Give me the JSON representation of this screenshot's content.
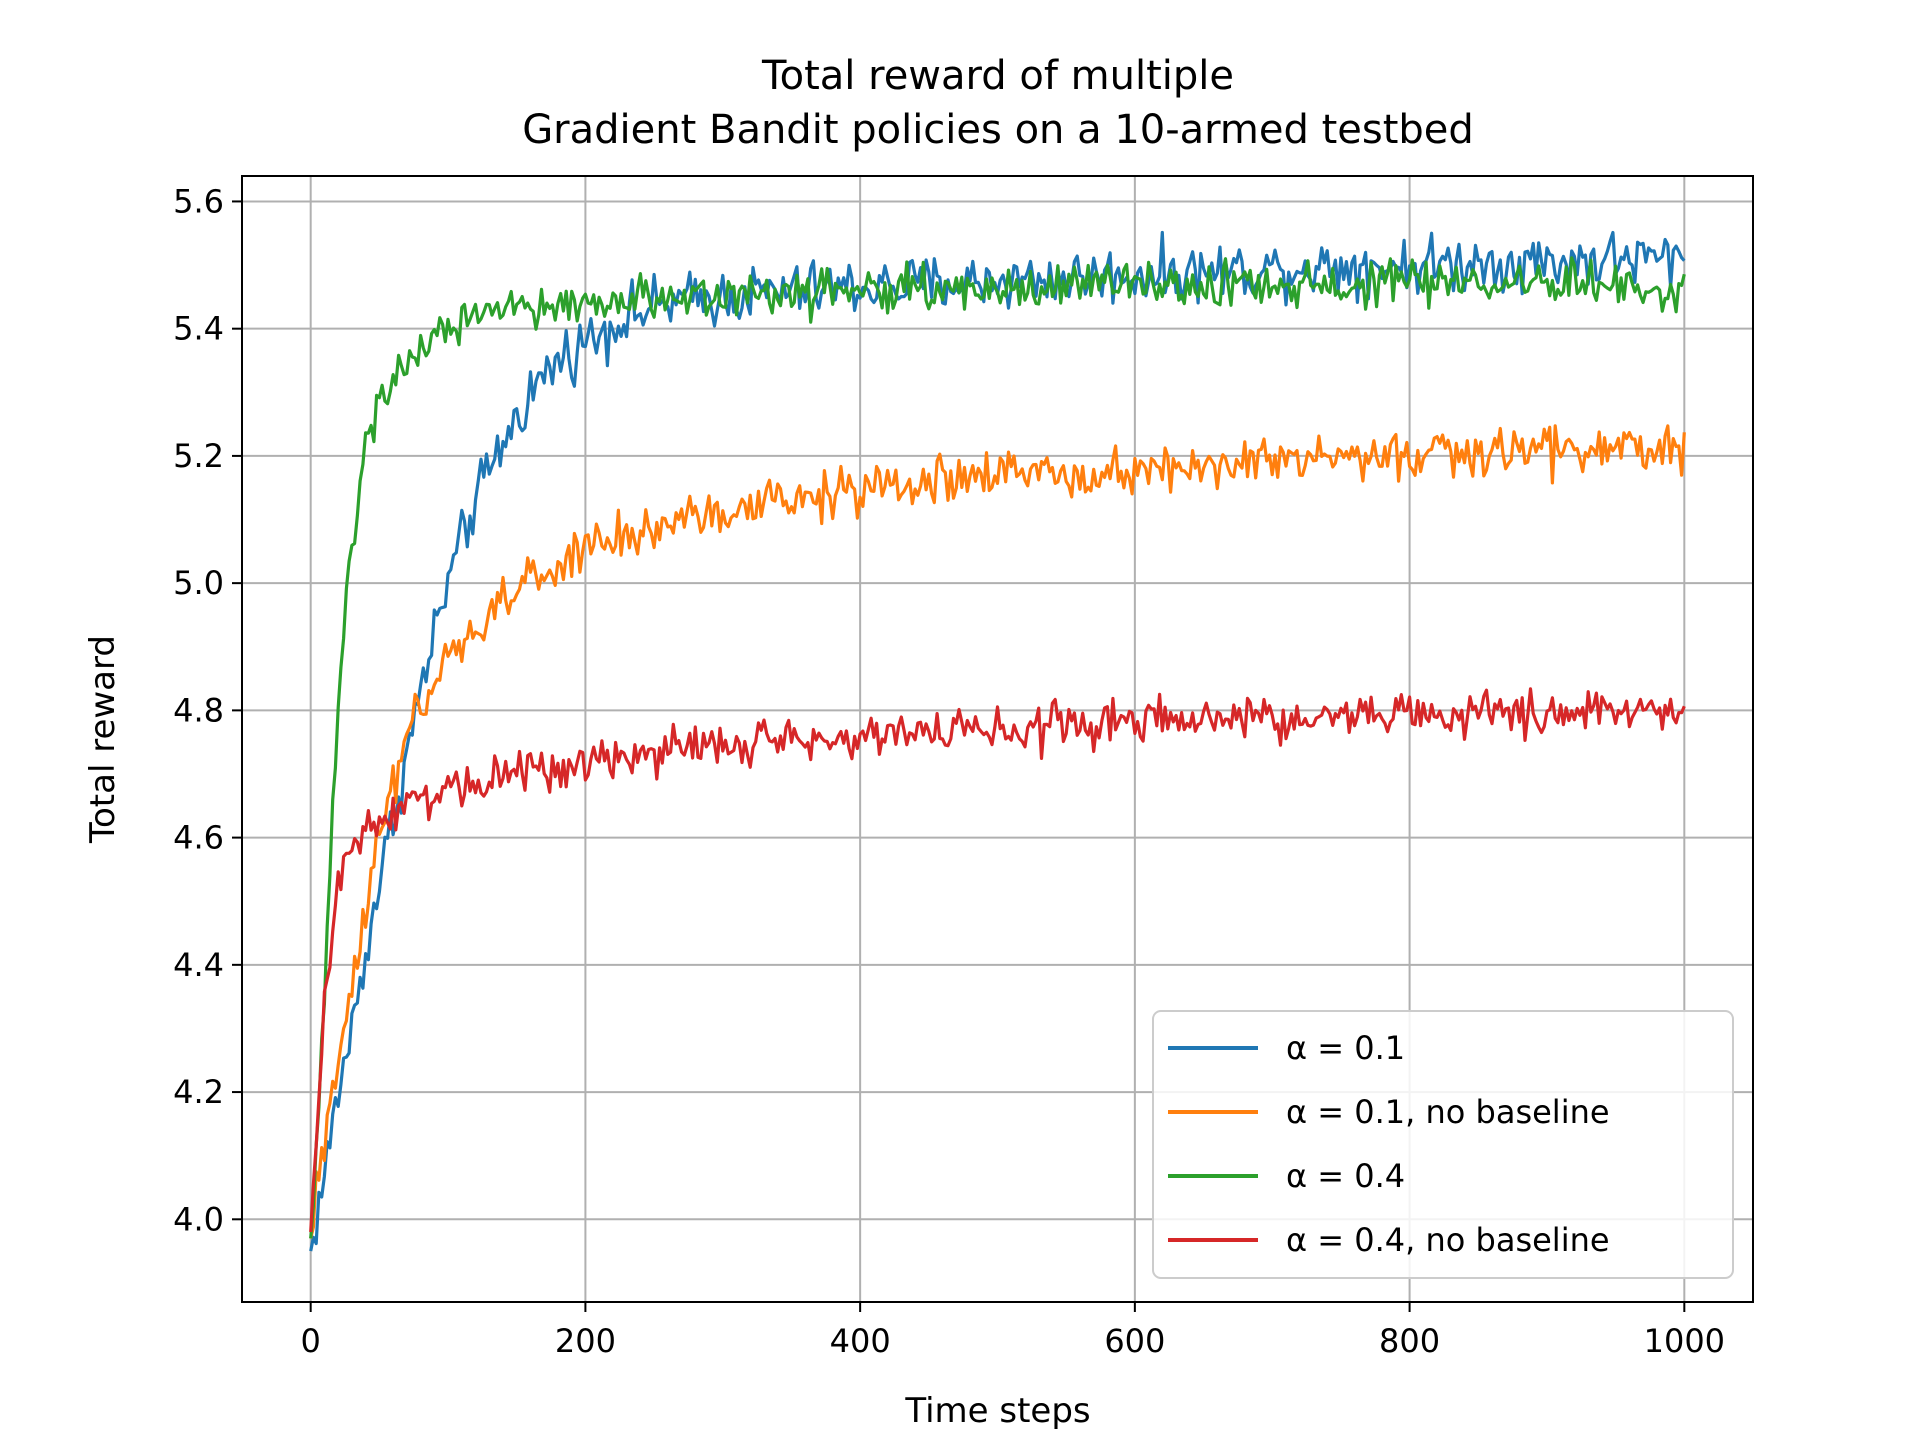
{
  "chart_data": {
    "type": "line",
    "title": "Total reward of multiple\nGradient Bandit policies on a 10-armed testbed",
    "title_lines": [
      "Total reward of multiple",
      "Gradient Bandit policies on a 10-armed testbed"
    ],
    "xlabel": "Time steps",
    "ylabel": "Total reward",
    "xlim": [
      -50,
      1050
    ],
    "ylim": [
      3.87,
      5.64
    ],
    "xticks": [
      0,
      200,
      400,
      600,
      800,
      1000
    ],
    "xtick_labels": [
      "0",
      "200",
      "400",
      "600",
      "800",
      "1000"
    ],
    "yticks": [
      4.0,
      4.2,
      4.4,
      4.6,
      4.8,
      5.0,
      5.2,
      5.4,
      5.6
    ],
    "ytick_labels": [
      "4.0",
      "4.2",
      "4.4",
      "4.6",
      "4.8",
      "5.0",
      "5.2",
      "5.4",
      "5.6"
    ],
    "grid": true,
    "legend_position": "lower-right",
    "series": [
      {
        "name": "α = 0.1",
        "color": "#1f77b4",
        "x": [
          0,
          10,
          20,
          30,
          40,
          50,
          60,
          70,
          80,
          90,
          100,
          120,
          140,
          160,
          180,
          200,
          230,
          260,
          300,
          350,
          400,
          450,
          500,
          550,
          600,
          650,
          700,
          750,
          800,
          850,
          900,
          950,
          1000
        ],
        "values": [
          3.95,
          4.07,
          4.2,
          4.3,
          4.42,
          4.53,
          4.63,
          4.73,
          4.83,
          4.92,
          5.0,
          5.13,
          5.22,
          5.3,
          5.35,
          5.38,
          5.42,
          5.44,
          5.45,
          5.46,
          5.465,
          5.47,
          5.475,
          5.48,
          5.485,
          5.49,
          5.495,
          5.5,
          5.5,
          5.505,
          5.505,
          5.51,
          5.51
        ],
        "noise": 0.022
      },
      {
        "name": "α = 0.1, no baseline",
        "color": "#ff7f0e",
        "x": [
          0,
          10,
          20,
          30,
          40,
          50,
          60,
          70,
          80,
          100,
          120,
          150,
          200,
          250,
          300,
          350,
          400,
          450,
          500,
          550,
          600,
          650,
          700,
          750,
          800,
          850,
          900,
          950,
          1000
        ],
        "values": [
          3.97,
          4.12,
          4.25,
          4.38,
          4.5,
          4.6,
          4.68,
          4.75,
          4.8,
          4.87,
          4.93,
          4.99,
          5.05,
          5.09,
          5.11,
          5.13,
          5.145,
          5.16,
          5.17,
          5.175,
          5.18,
          5.185,
          5.19,
          5.195,
          5.2,
          5.205,
          5.21,
          5.21,
          5.21
        ],
        "noise": 0.02
      },
      {
        "name": "α = 0.4",
        "color": "#2ca02c",
        "x": [
          0,
          5,
          10,
          15,
          20,
          25,
          30,
          35,
          40,
          50,
          60,
          70,
          80,
          100,
          120,
          140,
          160,
          200,
          250,
          300,
          350,
          400,
          500,
          600,
          700,
          800,
          900,
          1000
        ],
        "values": [
          3.97,
          4.15,
          4.35,
          4.6,
          4.8,
          4.96,
          5.06,
          5.14,
          5.2,
          5.27,
          5.32,
          5.35,
          5.37,
          5.4,
          5.415,
          5.425,
          5.43,
          5.44,
          5.45,
          5.455,
          5.46,
          5.46,
          5.465,
          5.465,
          5.47,
          5.47,
          5.47,
          5.47
        ],
        "noise": 0.018
      },
      {
        "name": "α = 0.4, no baseline",
        "color": "#d62728",
        "x": [
          0,
          5,
          10,
          15,
          20,
          25,
          30,
          40,
          50,
          60,
          80,
          100,
          150,
          200,
          250,
          300,
          350,
          400,
          450,
          500,
          550,
          600,
          650,
          700,
          750,
          800,
          850,
          900,
          950,
          1000
        ],
        "values": [
          3.98,
          4.15,
          4.32,
          4.45,
          4.53,
          4.57,
          4.59,
          4.61,
          4.63,
          4.64,
          4.66,
          4.68,
          4.705,
          4.72,
          4.735,
          4.745,
          4.755,
          4.762,
          4.768,
          4.772,
          4.776,
          4.78,
          4.783,
          4.786,
          4.789,
          4.792,
          4.795,
          4.797,
          4.799,
          4.8
        ],
        "noise": 0.018
      }
    ]
  }
}
